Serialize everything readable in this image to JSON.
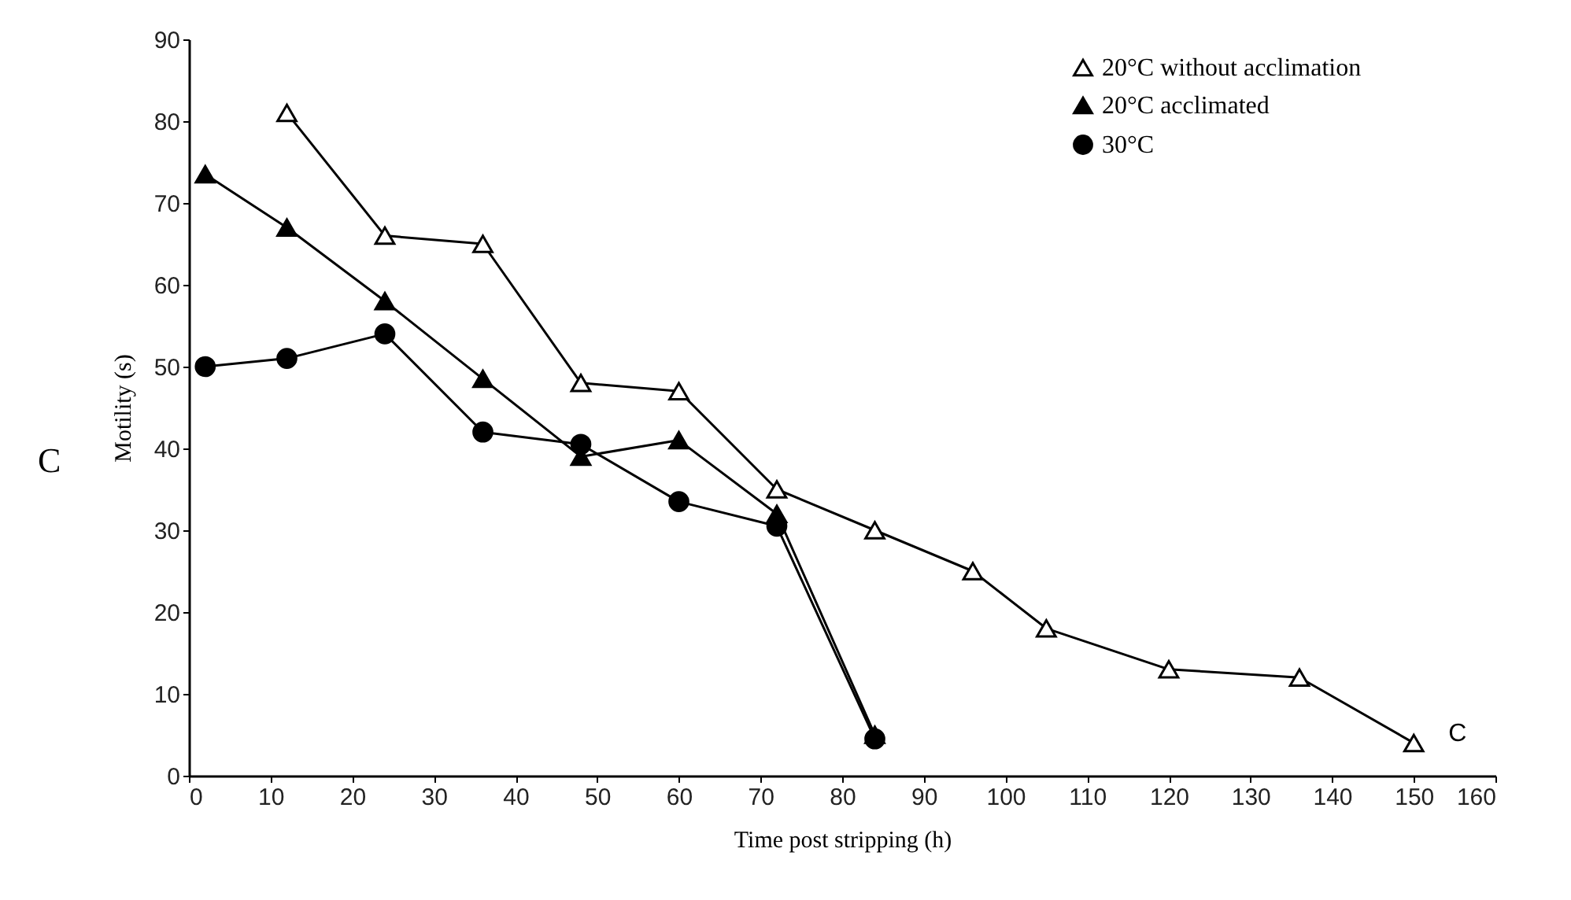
{
  "chart_data": {
    "type": "line",
    "xlabel": "Time post stripping (h)",
    "ylabel": "Motility (s)",
    "xlim": [
      0,
      160
    ],
    "xticks": [
      0,
      10,
      20,
      30,
      40,
      50,
      60,
      70,
      80,
      90,
      100,
      110,
      120,
      130,
      140,
      150,
      160
    ],
    "ylim": [
      0,
      90
    ],
    "yticks": [
      0,
      10,
      20,
      30,
      40,
      50,
      60,
      70,
      80,
      90
    ],
    "grid": false,
    "legend": "top right",
    "annotations": [
      "C",
      {
        "text": "C",
        "x": 150,
        "y": 4
      }
    ],
    "series": [
      {
        "name": "20°C without acclimation",
        "color": "#000000",
        "marker": "triangle",
        "colors": [
          "#ffffff",
          "#ffffff",
          "#ffffff",
          "#ffffff",
          "#ffffff",
          "#ffffff",
          "#ffffff",
          "#ffffff",
          "#ffffff",
          "#ffffff",
          "#ffffff",
          "#ffffff"
        ],
        "x": [
          12,
          24,
          36,
          48,
          60,
          72,
          84,
          96,
          105,
          120,
          136,
          150
        ],
        "values": [
          81,
          66,
          65,
          48,
          47,
          35,
          30,
          25,
          18,
          13,
          12,
          4
        ]
      },
      {
        "name": "20°C acclimated",
        "color": "#000000",
        "marker": "triangle",
        "x": [
          2,
          12,
          24,
          36,
          48,
          60,
          72,
          84
        ],
        "values": [
          73.5,
          67,
          58,
          48.5,
          39,
          41,
          32,
          5
        ]
      },
      {
        "name": "30°C",
        "color": "#000000",
        "marker": "circle",
        "x": [
          2,
          12,
          24,
          36,
          48,
          60,
          72,
          84
        ],
        "values": [
          50,
          51,
          54,
          42,
          40.5,
          33.5,
          30.5,
          4.5
        ]
      }
    ]
  }
}
